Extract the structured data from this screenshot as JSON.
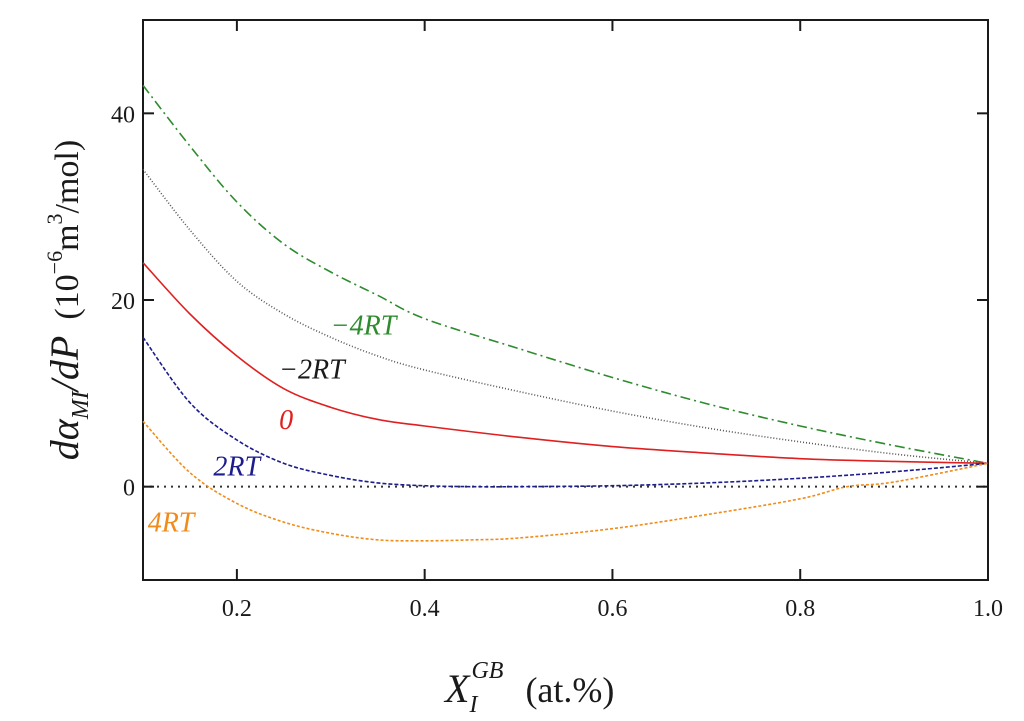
{
  "chart_data": {
    "type": "line",
    "xlabel": {
      "base": "X",
      "sub": "I",
      "sup": "GB",
      "unit": "(at.%)"
    },
    "ylabel": {
      "main": "dα",
      "sub": "MI",
      "rest": "/dP",
      "unit_prefix": "(10",
      "exp": "−6",
      "unit_mid": "m",
      "exp2": "3",
      "unit_suffix": "/mol)"
    },
    "xlim": [
      0.1,
      1.0
    ],
    "ylim": [
      -10,
      50
    ],
    "xticks": [
      {
        "value": 0.2,
        "label": "0.2"
      },
      {
        "value": 0.4,
        "label": "0.4"
      },
      {
        "value": 0.6,
        "label": "0.6"
      },
      {
        "value": 0.8,
        "label": "0.8"
      },
      {
        "value": 1.0,
        "label": "1.0"
      }
    ],
    "yticks": [
      {
        "value": 0,
        "label": "0"
      },
      {
        "value": 20,
        "label": "20"
      },
      {
        "value": 40,
        "label": "40"
      }
    ],
    "reference_line": {
      "y": 0,
      "style": "dotted",
      "color": "#333333"
    },
    "series": [
      {
        "name": "−4RT",
        "color": "#2e8b2e",
        "dash": "10,4,2,4",
        "x": [
          0.1,
          0.15,
          0.2,
          0.25,
          0.3,
          0.35,
          0.4,
          0.5,
          0.6,
          0.7,
          0.8,
          0.9,
          1.0
        ],
        "y": [
          43.0,
          36.5,
          30.5,
          26.0,
          23.0,
          20.5,
          18.0,
          14.8,
          11.7,
          8.9,
          6.5,
          4.4,
          2.5
        ]
      },
      {
        "name": "−2RT",
        "color": "#555555",
        "dash": "1,2",
        "x": [
          0.1,
          0.15,
          0.2,
          0.25,
          0.3,
          0.35,
          0.4,
          0.5,
          0.6,
          0.7,
          0.8,
          0.9,
          1.0
        ],
        "y": [
          34.0,
          27.5,
          22.0,
          18.5,
          16.0,
          14.0,
          12.5,
          10.2,
          8.1,
          6.3,
          4.8,
          3.5,
          2.5
        ]
      },
      {
        "name": "0",
        "color": "#e02020",
        "dash": "",
        "x": [
          0.1,
          0.15,
          0.2,
          0.25,
          0.3,
          0.35,
          0.4,
          0.5,
          0.6,
          0.7,
          0.8,
          0.9,
          1.0
        ],
        "y": [
          24.0,
          18.5,
          14.0,
          10.5,
          8.5,
          7.2,
          6.5,
          5.3,
          4.3,
          3.6,
          3.0,
          2.7,
          2.5
        ]
      },
      {
        "name": "2RT",
        "color": "#1c1c8c",
        "dash": "4,2",
        "x": [
          0.1,
          0.15,
          0.2,
          0.25,
          0.3,
          0.35,
          0.4,
          0.45,
          0.5,
          0.6,
          0.7,
          0.8,
          0.9,
          1.0
        ],
        "y": [
          16.0,
          9.0,
          5.0,
          2.5,
          1.2,
          0.4,
          0.1,
          0.0,
          0.0,
          0.1,
          0.4,
          0.9,
          1.6,
          2.5
        ]
      },
      {
        "name": "4RT",
        "color": "#f08c1a",
        "dash": "3,2",
        "x": [
          0.1,
          0.15,
          0.2,
          0.25,
          0.3,
          0.35,
          0.4,
          0.45,
          0.5,
          0.6,
          0.7,
          0.8,
          0.85,
          0.9,
          1.0
        ],
        "y": [
          7.0,
          1.5,
          -1.8,
          -3.8,
          -5.0,
          -5.7,
          -5.8,
          -5.7,
          -5.5,
          -4.5,
          -3.0,
          -1.3,
          0.0,
          0.5,
          2.5
        ]
      }
    ],
    "annotations": [
      {
        "text": "−4RT",
        "x": 0.3,
        "y": 16.3,
        "color": "#2e8b2e"
      },
      {
        "text": "−2RT",
        "x": 0.245,
        "y": 11.6,
        "color": "#1a1a1a"
      },
      {
        "text": "0",
        "x": 0.245,
        "y": 6.2,
        "color": "#e02020"
      },
      {
        "text": "2RT",
        "x": 0.175,
        "y": 1.2,
        "color": "#1c1c8c"
      },
      {
        "text": "4RT",
        "x": 0.105,
        "y": -4.8,
        "color": "#f08c1a"
      }
    ]
  }
}
